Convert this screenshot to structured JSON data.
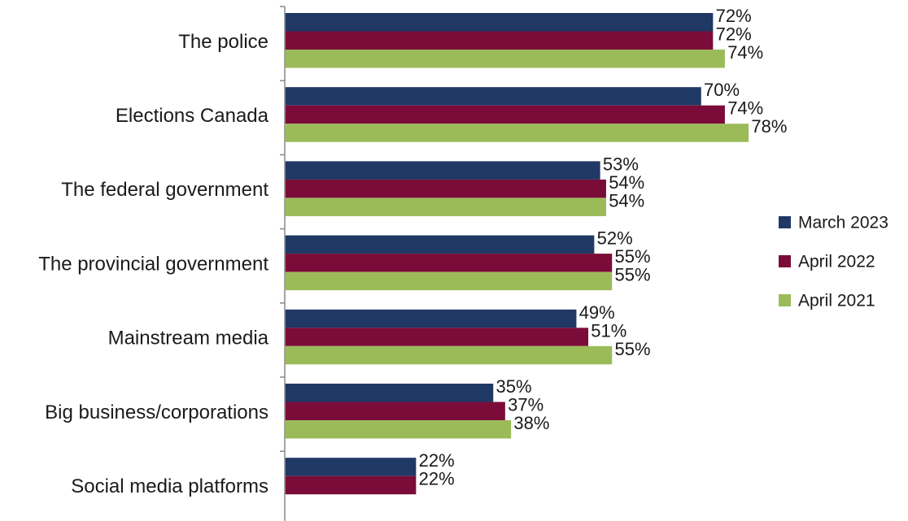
{
  "chart_data": {
    "type": "bar",
    "orientation": "horizontal",
    "categories": [
      "The police",
      "Elections Canada",
      "The federal government",
      "The provincial government",
      "Mainstream media",
      "Big business/corporations",
      "Social media platforms"
    ],
    "series": [
      {
        "name": "March 2023",
        "color": "#1f3864",
        "values": [
          72,
          70,
          53,
          52,
          49,
          35,
          22
        ]
      },
      {
        "name": "April 2022",
        "color": "#7b0c3a",
        "values": [
          72,
          74,
          54,
          55,
          51,
          37,
          22
        ]
      },
      {
        "name": "April 2021",
        "color": "#9bbb59",
        "values": [
          74,
          78,
          54,
          55,
          55,
          38,
          null
        ]
      }
    ],
    "value_suffix": "%",
    "xlim": [
      0,
      100
    ],
    "grid": false,
    "legend_position": "right",
    "title": "",
    "xlabel": "",
    "ylabel": ""
  }
}
